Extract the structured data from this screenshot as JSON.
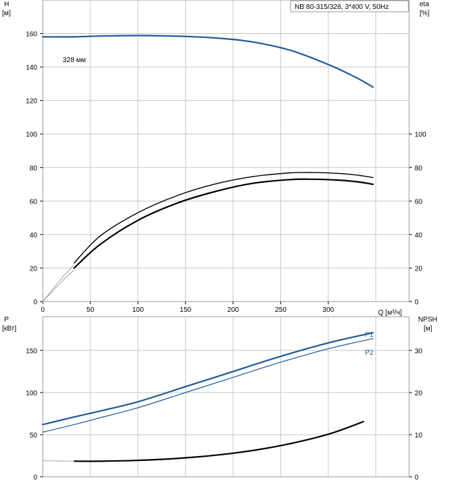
{
  "chart_data": [
    {
      "type": "line",
      "label_box": "NB 80-315/328, 3*400 V, 50Hz",
      "left_axis": {
        "label": "H",
        "unit": "[м]",
        "ylim": [
          0,
          180
        ],
        "ticks": [
          0,
          20,
          40,
          60,
          80,
          100,
          120,
          140,
          160
        ]
      },
      "right_axis": {
        "label": "eta",
        "unit": "[%]",
        "ylim": [
          0,
          180
        ],
        "ticks": [
          0,
          20,
          40,
          60,
          80,
          100
        ]
      },
      "x_axis": {
        "label": "Q [м³/ч]",
        "xlim": [
          0,
          385
        ],
        "ticks": [
          0,
          50,
          100,
          150,
          200,
          250,
          300
        ]
      },
      "grid": true,
      "series": [
        {
          "name": "328 мм",
          "axis": "left",
          "color": "#1f5a96",
          "width": 2.2,
          "x": [
            0,
            33,
            60,
            100,
            140,
            180,
            220,
            260,
            300,
            330,
            347
          ],
          "y": [
            158,
            158,
            158.5,
            158.8,
            158.4,
            157.4,
            155,
            150,
            141.5,
            133.5,
            128
          ]
        },
        {
          "axis": "right",
          "color": "#000000",
          "width": 1.4,
          "x": [
            33,
            60,
            100,
            140,
            180,
            220,
            260,
            285,
            310,
            330,
            347
          ],
          "y": [
            23,
            39,
            53,
            63,
            70,
            74.5,
            76.8,
            77,
            76.5,
            75.5,
            74
          ]
        },
        {
          "axis": "right",
          "color": "#000000",
          "width": 2.2,
          "x": [
            33,
            60,
            100,
            140,
            180,
            220,
            260,
            285,
            310,
            330,
            347
          ],
          "y": [
            20,
            34,
            48.5,
            58.5,
            65.5,
            70.5,
            72.8,
            73,
            72.5,
            71.5,
            70
          ]
        },
        {
          "axis": "right",
          "color": "#9a9a9a",
          "width": 0.9,
          "x": [
            0,
            10,
            20,
            33
          ],
          "y": [
            0,
            7,
            14,
            22
          ]
        },
        {
          "axis": "right",
          "color": "#9a9a9a",
          "width": 0.9,
          "x": [
            0,
            10,
            20,
            33
          ],
          "y": [
            0,
            6,
            12,
            19
          ]
        }
      ]
    },
    {
      "type": "line",
      "left_axis": {
        "label": "P",
        "unit": "[кВт]",
        "ylim": [
          0,
          190
        ],
        "ticks": [
          0,
          50,
          100,
          150
        ]
      },
      "right_axis": {
        "label": "NPSH",
        "unit": "[м]",
        "ylim": [
          0,
          38
        ],
        "ticks": [
          0,
          10,
          20,
          30
        ]
      },
      "x_axis": {
        "xlim": [
          0,
          385
        ]
      },
      "grid": true,
      "series": [
        {
          "name": "P1",
          "axis": "left",
          "color": "#1f5a96",
          "width": 2.2,
          "x": [
            0,
            33,
            60,
            100,
            150,
            200,
            250,
            300,
            347
          ],
          "y": [
            62,
            71,
            78,
            89,
            107,
            125,
            143,
            159,
            171
          ]
        },
        {
          "name": "P2",
          "axis": "left",
          "color": "#1f5a96",
          "width": 1.2,
          "x": [
            0,
            33,
            60,
            100,
            150,
            200,
            250,
            300,
            347
          ],
          "y": [
            53,
            62,
            70,
            82,
            100,
            118,
            136,
            152,
            164
          ]
        },
        {
          "axis": "right",
          "color": "#000000",
          "width": 2.2,
          "x": [
            33,
            60,
            100,
            150,
            200,
            250,
            300,
            337
          ],
          "y": [
            3.7,
            3.7,
            3.9,
            4.5,
            5.6,
            7.4,
            10.1,
            13.1
          ]
        },
        {
          "axis": "right",
          "color": "#9a9a9a",
          "width": 0.9,
          "x": [
            0,
            33
          ],
          "y": [
            3.8,
            3.7
          ]
        }
      ]
    }
  ]
}
